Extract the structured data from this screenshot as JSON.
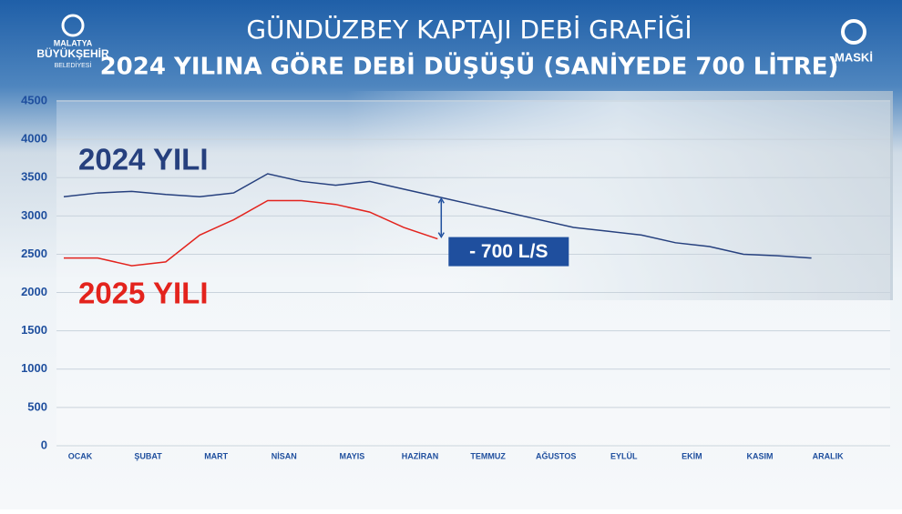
{
  "header": {
    "left_logo": [
      "MALATYA",
      "BÜYÜKŞEHİR",
      "BELEDİYESİ"
    ],
    "right_logo": "MASKİ"
  },
  "chart_data": {
    "type": "line",
    "title": "GÜNDÜZBEY KAPTAJI DEBİ GRAFİĞİ",
    "subtitle": "2024 YILINA GÖRE DEBİ DÜŞÜŞÜ (SANİYEDE 700 LİTRE)",
    "categories": [
      "OCAK",
      null,
      "ŞUBAT",
      null,
      "MART",
      null,
      "NİSAN",
      null,
      "MAYIS",
      null,
      "HAZİRAN",
      null,
      "TEMMUZ",
      null,
      "AĞUSTOS",
      null,
      "EYLÜL",
      null,
      "EKİM",
      null,
      "KASIM",
      null,
      "ARALIK",
      null
    ],
    "series": [
      {
        "name": "2024 YILI",
        "color": "#26407e",
        "values": [
          3250,
          3300,
          3320,
          3280,
          3250,
          3300,
          3550,
          3450,
          3400,
          3450,
          3350,
          3250,
          3150,
          3050,
          2950,
          2850,
          2800,
          2750,
          2650,
          2600,
          2500,
          2480,
          2450,
          null
        ]
      },
      {
        "name": "2025 YILI",
        "color": "#e3231d",
        "values": [
          2450,
          2450,
          2350,
          2400,
          2750,
          2950,
          3200,
          3200,
          3150,
          3050,
          2850,
          2700,
          null,
          null,
          null,
          null,
          null,
          null,
          null,
          null,
          null,
          null,
          null,
          null
        ]
      }
    ],
    "annotation": "- 700 L/S",
    "ylim": [
      0,
      4500
    ],
    "yticks": [
      0,
      500,
      1000,
      1500,
      2000,
      2500,
      3000,
      3500,
      4000,
      4500
    ],
    "grid": true
  }
}
